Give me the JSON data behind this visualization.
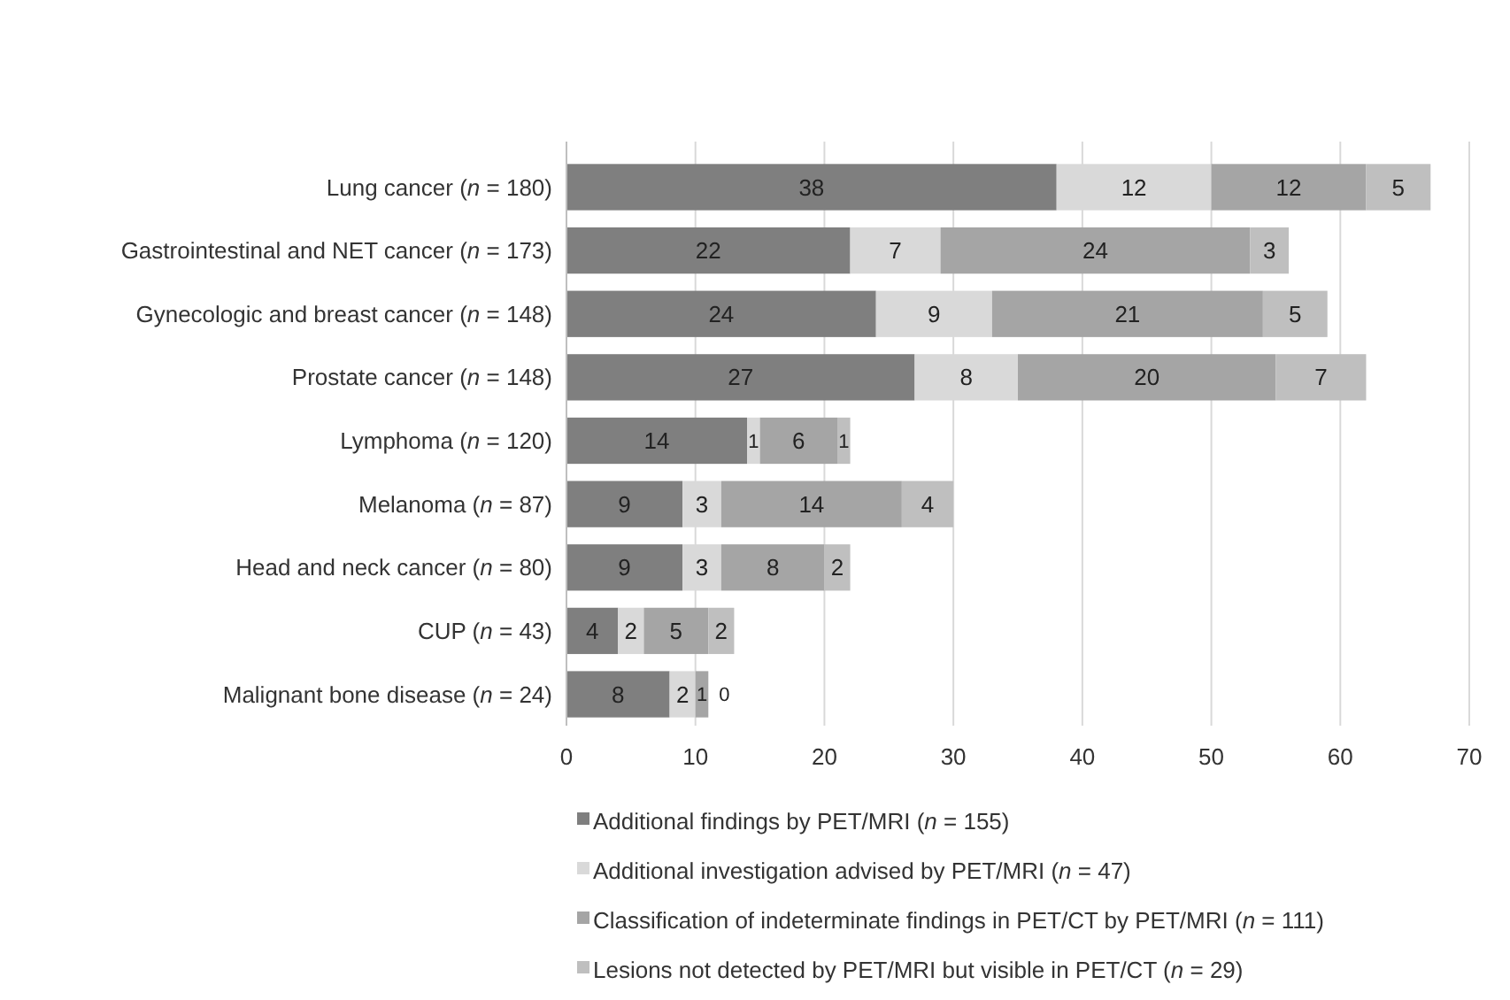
{
  "chart_data": {
    "type": "bar",
    "orientation": "horizontal",
    "stacked": true,
    "categories": [
      "Lung cancer (n = 180)",
      "Gastrointestinal and NET cancer (n = 173)",
      "Gynecologic and breast cancer (n = 148)",
      "Prostate cancer (n = 148)",
      "Lymphoma (n = 120)",
      "Melanoma (n = 87)",
      "Head and neck cancer (n = 80)",
      "CUP (n = 43)",
      "Malignant bone disease (n = 24)"
    ],
    "series": [
      {
        "name": "Additional findings by PET/MRI (n = 155)",
        "color": "#7f7f7f",
        "values": [
          38,
          22,
          24,
          27,
          14,
          9,
          9,
          4,
          8
        ]
      },
      {
        "name": "Additional investigation advised by PET/MRI (n = 47)",
        "color": "#d9d9d9",
        "values": [
          12,
          7,
          9,
          8,
          1,
          3,
          3,
          2,
          2
        ]
      },
      {
        "name": "Classification of indeterminate findings in PET/CT by PET/MRI (n = 111)",
        "color": "#a5a5a5",
        "values": [
          12,
          24,
          21,
          20,
          6,
          14,
          8,
          5,
          1
        ]
      },
      {
        "name": "Lesions not detected by PET/MRI but visible in PET/CT (n = 29)",
        "color": "#bfbfbf",
        "values": [
          5,
          3,
          5,
          7,
          1,
          4,
          2,
          2,
          0
        ]
      }
    ],
    "xlim": [
      0,
      70
    ],
    "xticks": [
      0,
      10,
      20,
      30,
      40,
      50,
      60,
      70
    ],
    "grid": "x",
    "legend": "bottom",
    "data_labels": true
  }
}
